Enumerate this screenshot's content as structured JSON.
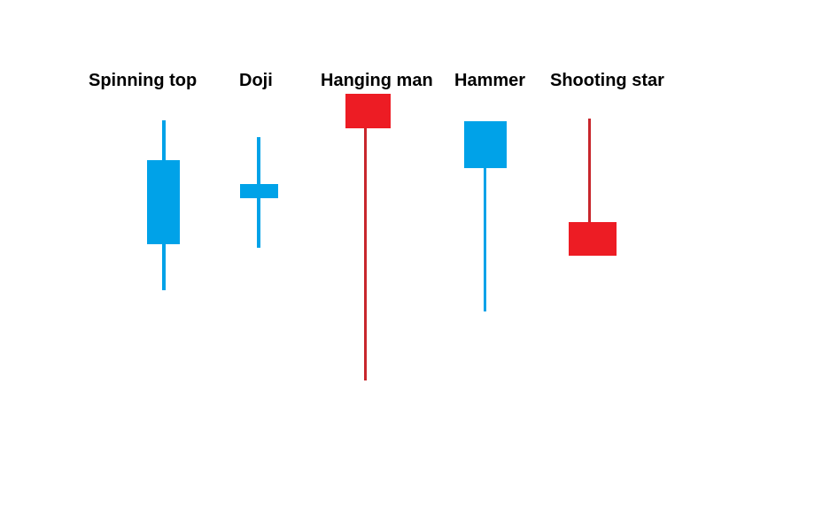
{
  "colors": {
    "background": "#ffffff",
    "bullish": "#00a2e8",
    "bearish": "#ed1c24",
    "bearish_wick": "#c8262c",
    "label": "#000000"
  },
  "patterns": [
    {
      "id": "spinning-top",
      "label": "Spinning top",
      "color": "bullish"
    },
    {
      "id": "doji",
      "label": "Doji",
      "color": "bullish"
    },
    {
      "id": "hanging-man",
      "label": "Hanging man",
      "color": "bearish"
    },
    {
      "id": "hammer",
      "label": "Hammer",
      "color": "bullish"
    },
    {
      "id": "shooting-star",
      "label": "Shooting star",
      "color": "bearish"
    }
  ]
}
